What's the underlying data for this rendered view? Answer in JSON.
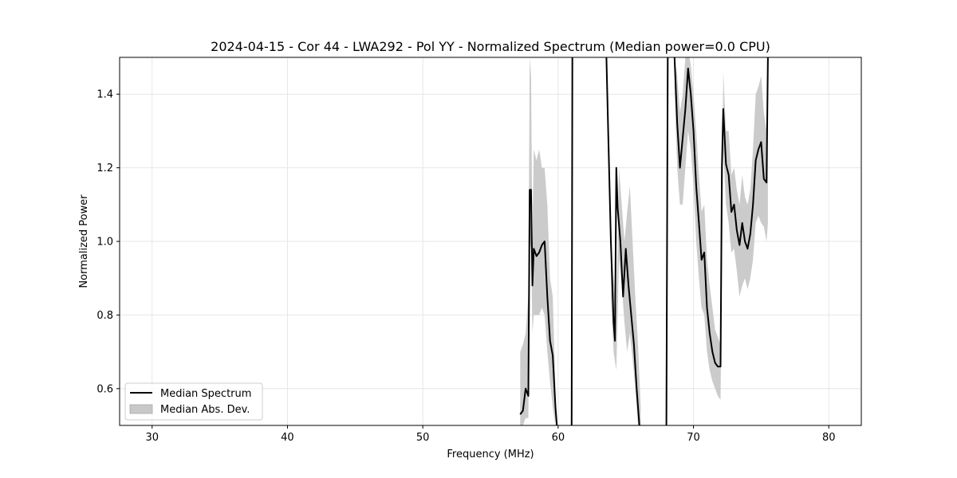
{
  "chart_data": {
    "type": "line",
    "title": "2024-04-15 - Cor 44 - LWA292 - Pol YY - Normalized Spectrum (Median power=0.0 CPU)",
    "xlabel": "Frequency (MHz)",
    "ylabel": "Normalized Power",
    "xlim": [
      27.6,
      82.4
    ],
    "ylim": [
      0.5,
      1.5
    ],
    "xticks": [
      30,
      40,
      50,
      60,
      70,
      80
    ],
    "yticks": [
      0.6,
      0.8,
      1.0,
      1.2,
      1.4
    ],
    "xtick_labels": [
      "30",
      "40",
      "50",
      "60",
      "70",
      "80"
    ],
    "ytick_labels": [
      "0.6",
      "0.8",
      "1.0",
      "1.2",
      "1.4"
    ],
    "grid": true,
    "legend_position": "lower-left",
    "series": [
      {
        "name": "Median Spectrum",
        "color": "#000000",
        "x": [
          57.2,
          57.4,
          57.6,
          57.8,
          57.9,
          58.0,
          58.1,
          58.2,
          58.4,
          58.6,
          58.8,
          59.0,
          59.2,
          59.4,
          59.6,
          59.8,
          60.0,
          60.4,
          60.8,
          61.0,
          61.05,
          61.1,
          63.5,
          63.7,
          63.9,
          64.1,
          64.2,
          64.3,
          64.4,
          64.6,
          64.8,
          65.0,
          65.2,
          65.4,
          65.6,
          65.8,
          66.0,
          66.3,
          67.0,
          67.5,
          68.0,
          68.1,
          68.15,
          68.6,
          68.8,
          69.0,
          69.2,
          69.4,
          69.6,
          69.8,
          70.0,
          70.2,
          70.4,
          70.6,
          70.8,
          71.0,
          71.2,
          71.4,
          71.6,
          71.8,
          72.0,
          72.1,
          72.2,
          72.4,
          72.6,
          72.8,
          73.0,
          73.2,
          73.4,
          73.6,
          73.8,
          74.0,
          74.2,
          74.4,
          74.6,
          74.8,
          75.0,
          75.2,
          75.4,
          75.5,
          75.55
        ],
        "y": [
          0.53,
          0.54,
          0.6,
          0.58,
          1.14,
          1.14,
          0.88,
          0.98,
          0.96,
          0.97,
          0.99,
          1.0,
          0.85,
          0.73,
          0.69,
          0.55,
          0.45,
          0.4,
          0.45,
          0.5,
          1.5,
          1.6,
          1.6,
          1.3,
          1.0,
          0.78,
          0.73,
          1.2,
          1.09,
          1.0,
          0.85,
          0.98,
          0.88,
          0.8,
          0.72,
          0.6,
          0.5,
          0.4,
          0.4,
          0.45,
          0.5,
          1.5,
          1.6,
          1.5,
          1.32,
          1.2,
          1.28,
          1.36,
          1.47,
          1.4,
          1.3,
          1.15,
          1.05,
          0.95,
          0.97,
          0.82,
          0.75,
          0.7,
          0.67,
          0.66,
          0.66,
          1.2,
          1.36,
          1.21,
          1.18,
          1.08,
          1.1,
          1.03,
          0.99,
          1.05,
          1.0,
          0.98,
          1.02,
          1.1,
          1.22,
          1.25,
          1.27,
          1.17,
          1.16,
          1.5,
          1.6
        ]
      },
      {
        "name": "Median Abs. Dev.",
        "color": "#c8c8c8",
        "x": [
          57.2,
          57.4,
          57.6,
          57.8,
          57.9,
          58.0,
          58.1,
          58.2,
          58.4,
          58.6,
          58.8,
          59.0,
          59.2,
          59.4,
          59.6,
          59.8,
          63.9,
          64.1,
          64.3,
          64.5,
          64.7,
          64.9,
          65.1,
          65.3,
          65.5,
          65.7,
          65.9,
          66.1,
          68.6,
          68.8,
          69.0,
          69.2,
          69.4,
          69.6,
          69.8,
          70.0,
          70.2,
          70.4,
          70.6,
          70.8,
          71.0,
          71.2,
          71.4,
          71.6,
          71.8,
          72.0,
          72.2,
          72.4,
          72.6,
          72.8,
          73.0,
          73.2,
          73.4,
          73.6,
          73.8,
          74.0,
          74.2,
          74.4,
          74.6,
          74.8,
          75.0,
          75.2,
          75.4,
          75.5
        ],
        "lower": [
          0.5,
          0.5,
          0.52,
          0.52,
          1.0,
          0.98,
          0.75,
          0.8,
          0.8,
          0.8,
          0.82,
          0.8,
          0.7,
          0.62,
          0.55,
          0.5,
          0.85,
          0.7,
          0.65,
          0.95,
          0.88,
          0.78,
          0.7,
          0.75,
          0.68,
          0.6,
          0.5,
          0.5,
          1.4,
          1.2,
          1.1,
          1.1,
          1.2,
          1.3,
          1.25,
          1.15,
          1.0,
          0.9,
          0.82,
          0.8,
          0.7,
          0.65,
          0.62,
          0.6,
          0.58,
          0.57,
          1.25,
          1.1,
          1.05,
          0.97,
          0.98,
          0.92,
          0.85,
          0.88,
          0.9,
          0.87,
          0.9,
          0.95,
          1.05,
          1.07,
          1.05,
          1.04,
          1.0,
          1.05
        ],
        "upper": [
          0.7,
          0.72,
          0.75,
          0.85,
          1.5,
          1.45,
          1.0,
          1.25,
          1.22,
          1.25,
          1.2,
          1.2,
          1.1,
          0.9,
          0.85,
          0.6,
          1.0,
          0.9,
          0.82,
          1.2,
          1.1,
          1.0,
          1.08,
          1.15,
          1.0,
          0.85,
          0.72,
          0.55,
          1.5,
          1.45,
          1.35,
          1.4,
          1.5,
          1.52,
          1.48,
          1.4,
          1.3,
          1.18,
          1.08,
          1.1,
          0.95,
          0.88,
          0.82,
          0.76,
          0.74,
          0.72,
          1.46,
          1.3,
          1.3,
          1.18,
          1.2,
          1.14,
          1.1,
          1.18,
          1.12,
          1.1,
          1.14,
          1.25,
          1.4,
          1.42,
          1.45,
          1.35,
          1.3,
          1.42
        ]
      }
    ],
    "legend": [
      {
        "label": "Median Spectrum",
        "kind": "line"
      },
      {
        "label": "Median Abs. Dev.",
        "kind": "fill"
      }
    ]
  }
}
